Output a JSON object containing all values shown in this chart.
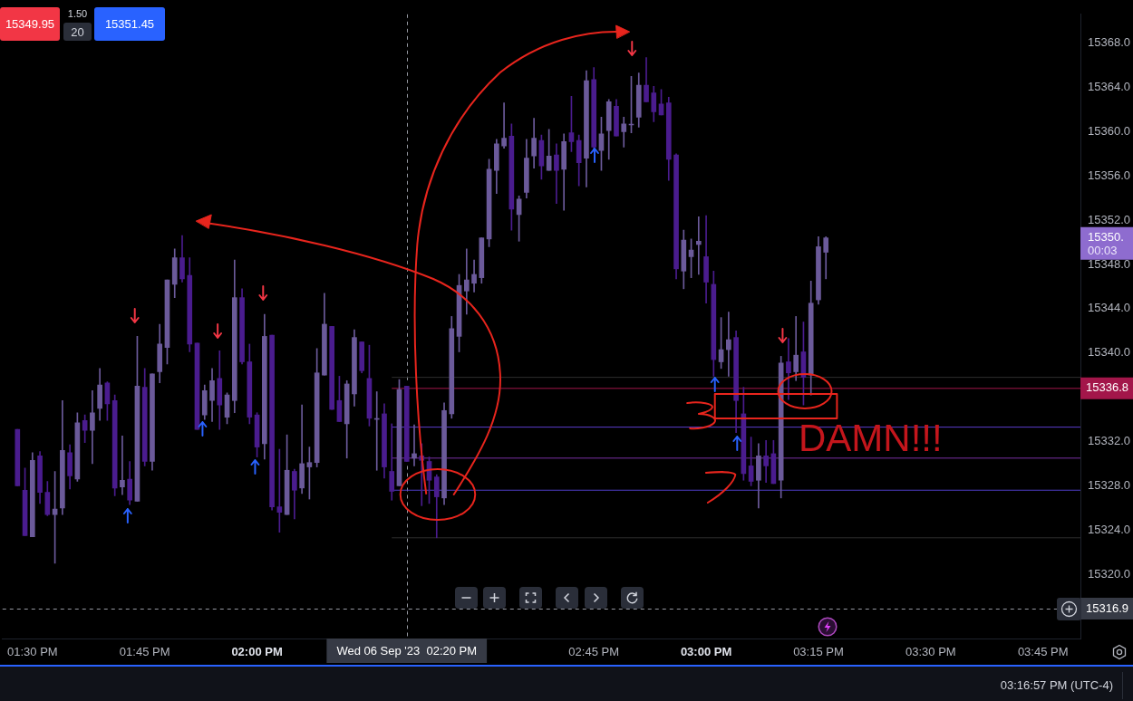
{
  "chart_data": {
    "type": "candlestick",
    "x": [
      "2023-09-06T13:28",
      "2023-09-06T13:29",
      "2023-09-06T13:30",
      "2023-09-06T13:31",
      "2023-09-06T13:32",
      "2023-09-06T13:33",
      "2023-09-06T13:34",
      "2023-09-06T13:35",
      "2023-09-06T13:36",
      "2023-09-06T13:37",
      "2023-09-06T13:38",
      "2023-09-06T13:39",
      "2023-09-06T13:40",
      "2023-09-06T13:41",
      "2023-09-06T13:42",
      "2023-09-06T13:43",
      "2023-09-06T13:44",
      "2023-09-06T13:45",
      "2023-09-06T13:46",
      "2023-09-06T13:47",
      "2023-09-06T13:48",
      "2023-09-06T13:49",
      "2023-09-06T13:50",
      "2023-09-06T13:51",
      "2023-09-06T13:52",
      "2023-09-06T13:53",
      "2023-09-06T13:54",
      "2023-09-06T13:55",
      "2023-09-06T13:56",
      "2023-09-06T13:57",
      "2023-09-06T13:58",
      "2023-09-06T13:59",
      "2023-09-06T14:00",
      "2023-09-06T14:01",
      "2023-09-06T14:02",
      "2023-09-06T14:03",
      "2023-09-06T14:04",
      "2023-09-06T14:05",
      "2023-09-06T14:06",
      "2023-09-06T14:07",
      "2023-09-06T14:08",
      "2023-09-06T14:09",
      "2023-09-06T14:10",
      "2023-09-06T14:11",
      "2023-09-06T14:12",
      "2023-09-06T14:13",
      "2023-09-06T14:14",
      "2023-09-06T14:15",
      "2023-09-06T14:16",
      "2023-09-06T14:17",
      "2023-09-06T14:18",
      "2023-09-06T14:19",
      "2023-09-06T14:20",
      "2023-09-06T14:21",
      "2023-09-06T14:22",
      "2023-09-06T14:23",
      "2023-09-06T14:24",
      "2023-09-06T14:25",
      "2023-09-06T14:26",
      "2023-09-06T14:27",
      "2023-09-06T14:28",
      "2023-09-06T14:29",
      "2023-09-06T14:30",
      "2023-09-06T14:31",
      "2023-09-06T14:32",
      "2023-09-06T14:33",
      "2023-09-06T14:34",
      "2023-09-06T14:35",
      "2023-09-06T14:36",
      "2023-09-06T14:37",
      "2023-09-06T14:38",
      "2023-09-06T14:39",
      "2023-09-06T14:40",
      "2023-09-06T14:41",
      "2023-09-06T14:42",
      "2023-09-06T14:43",
      "2023-09-06T14:44",
      "2023-09-06T14:45",
      "2023-09-06T14:46",
      "2023-09-06T14:47",
      "2023-09-06T14:48",
      "2023-09-06T14:49",
      "2023-09-06T14:50",
      "2023-09-06T14:51",
      "2023-09-06T14:52",
      "2023-09-06T14:53",
      "2023-09-06T14:54",
      "2023-09-06T14:55",
      "2023-09-06T14:56",
      "2023-09-06T14:57",
      "2023-09-06T14:58",
      "2023-09-06T14:59",
      "2023-09-06T15:00",
      "2023-09-06T15:01",
      "2023-09-06T15:02",
      "2023-09-06T15:03",
      "2023-09-06T15:04",
      "2023-09-06T15:05",
      "2023-09-06T15:06",
      "2023-09-06T15:07",
      "2023-09-06T15:08",
      "2023-09-06T15:09",
      "2023-09-06T15:10",
      "2023-09-06T15:11",
      "2023-09-06T15:12",
      "2023-09-06T15:13",
      "2023-09-06T15:14",
      "2023-09-06T15:15",
      "2023-09-06T15:16"
    ],
    "ohlc": [
      [
        15333.1,
        15333.1,
        15328.0,
        15328.0
      ],
      [
        15327.6,
        15329.6,
        15323.5,
        15323.5
      ],
      [
        15323.4,
        15331.0,
        15323.4,
        15330.3
      ],
      [
        15330.7,
        15331.1,
        15326.4,
        15327.4
      ],
      [
        15327.4,
        15328.4,
        15325.3,
        15325.4
      ],
      [
        15325.4,
        15329.3,
        15321.0,
        15325.9
      ],
      [
        15326.0,
        15335.7,
        15325.4,
        15331.2
      ],
      [
        15331.0,
        15331.7,
        15327.7,
        15328.9
      ],
      [
        15328.6,
        15334.6,
        15328.4,
        15333.7
      ],
      [
        15333.9,
        15334.4,
        15331.9,
        15333.0
      ],
      [
        15333.0,
        15336.6,
        15330.0,
        15334.6
      ],
      [
        15335.0,
        15338.6,
        15333.9,
        15337.1
      ],
      [
        15337.3,
        15337.4,
        15333.9,
        15335.4
      ],
      [
        15335.7,
        15336.2,
        15327.1,
        15327.8
      ],
      [
        15327.9,
        15332.5,
        15327.2,
        15328.5
      ],
      [
        15328.6,
        15330.2,
        15326.3,
        15326.7
      ],
      [
        15326.6,
        15341.5,
        15326.6,
        15337.0
      ],
      [
        15336.9,
        15338.6,
        15329.8,
        15330.2
      ],
      [
        15330.2,
        15338.1,
        15329.4,
        15338.1
      ],
      [
        15338.3,
        15342.6,
        15337.3,
        15340.8
      ],
      [
        15340.5,
        15346.6,
        15339.0,
        15346.6
      ],
      [
        15346.2,
        15349.4,
        15345.0,
        15348.6
      ],
      [
        15348.6,
        15350.6,
        15346.4,
        15346.7
      ],
      [
        15347.0,
        15348.6,
        15340.1,
        15340.8
      ],
      [
        15340.9,
        15340.9,
        15333.1,
        15333.1
      ],
      [
        15334.4,
        15337.1,
        15334.0,
        15336.6
      ],
      [
        15335.7,
        15338.6,
        15333.8,
        15337.5
      ],
      [
        15337.7,
        15340.2,
        15333.1,
        15335.3
      ],
      [
        15334.2,
        15336.4,
        15333.6,
        15336.2
      ],
      [
        15335.7,
        15348.4,
        15334.6,
        15345.0
      ],
      [
        15345.0,
        15345.8,
        15339.0,
        15339.2
      ],
      [
        15339.2,
        15340.8,
        15333.6,
        15334.2
      ],
      [
        15334.4,
        15334.6,
        15330.6,
        15331.5
      ],
      [
        15331.8,
        15343.5,
        15330.4,
        15341.5
      ],
      [
        15341.6,
        15341.6,
        15325.8,
        15326.1
      ],
      [
        15326.1,
        15331.3,
        15323.8,
        15325.6
      ],
      [
        15325.4,
        15332.6,
        15325.4,
        15329.4
      ],
      [
        15329.3,
        15329.5,
        15325.0,
        15327.6
      ],
      [
        15327.8,
        15335.3,
        15327.3,
        15330.0
      ],
      [
        15329.7,
        15331.5,
        15326.8,
        15330.1
      ],
      [
        15330.1,
        15340.4,
        15329.7,
        15338.2
      ],
      [
        15338.0,
        15345.4,
        15338.0,
        15342.6
      ],
      [
        15342.4,
        15342.4,
        15334.9,
        15334.9
      ],
      [
        15335.7,
        15337.9,
        15333.8,
        15333.8
      ],
      [
        15333.6,
        15337.5,
        15330.5,
        15337.2
      ],
      [
        15336.3,
        15342.1,
        15335.2,
        15341.4
      ],
      [
        15341.0,
        15341.0,
        15338.2,
        15338.4
      ],
      [
        15337.7,
        15340.7,
        15333.4,
        15334.1
      ],
      [
        15334.0,
        15336.5,
        15329.4,
        15334.0
      ],
      [
        15334.5,
        15335.4,
        15328.7,
        15329.7
      ],
      [
        15329.3,
        15333.6,
        15326.7,
        15327.5
      ],
      [
        15328.0,
        15337.6,
        15328.0,
        15336.7
      ],
      [
        15337.0,
        15337.0,
        15330.2,
        15330.2
      ],
      [
        15330.5,
        15333.5,
        15329.8,
        15330.9
      ],
      [
        15330.7,
        15331.8,
        15326.2,
        15330.3
      ],
      [
        15330.2,
        15330.6,
        15326.4,
        15328.5
      ],
      [
        15328.8,
        15329.0,
        15323.3,
        15327.0
      ],
      [
        15326.9,
        15335.5,
        15326.3,
        15334.8
      ],
      [
        15334.5,
        15343.3,
        15334.1,
        15342.2
      ],
      [
        15341.5,
        15347.1,
        15340.1,
        15346.1
      ],
      [
        15345.6,
        15349.4,
        15343.5,
        15346.6
      ],
      [
        15346.3,
        15348.4,
        15345.5,
        15347.1
      ],
      [
        15346.8,
        15350.4,
        15346.3,
        15350.4
      ],
      [
        15350.3,
        15357.5,
        15349.6,
        15356.6
      ],
      [
        15356.5,
        15359.3,
        15354.4,
        15358.9
      ],
      [
        15358.7,
        15362.6,
        15358.5,
        15359.4
      ],
      [
        15359.6,
        15360.7,
        15351.1,
        15353.0
      ],
      [
        15352.5,
        15354.2,
        15350.1,
        15353.9
      ],
      [
        15354.5,
        15359.3,
        15354.0,
        15357.6
      ],
      [
        15357.8,
        15361.2,
        15356.7,
        15359.4
      ],
      [
        15359.2,
        15359.7,
        15355.7,
        15356.9
      ],
      [
        15356.5,
        15360.2,
        15356.5,
        15357.8
      ],
      [
        15357.9,
        15358.9,
        15353.5,
        15356.5
      ],
      [
        15356.6,
        15359.8,
        15352.9,
        15359.1
      ],
      [
        15359.9,
        15363.2,
        15358.2,
        15359.1
      ],
      [
        15359.2,
        15359.7,
        15355.1,
        15357.2
      ],
      [
        15357.6,
        15365.5,
        15355.0,
        15364.6
      ],
      [
        15364.7,
        15365.8,
        15358.2,
        15358.6
      ],
      [
        15358.3,
        15361.3,
        15356.5,
        15359.8
      ],
      [
        15360.1,
        15362.9,
        15357.5,
        15362.7
      ],
      [
        15362.3,
        15362.9,
        15359.6,
        15359.6
      ],
      [
        15360.0,
        15361.3,
        15358.6,
        15360.7
      ],
      [
        15360.6,
        15365.0,
        15359.9,
        15360.6
      ],
      [
        15361.3,
        15365.3,
        15360.4,
        15364.2
      ],
      [
        15364.2,
        15366.7,
        15362.7,
        15362.7
      ],
      [
        15363.5,
        15364.1,
        15360.9,
        15361.8
      ],
      [
        15362.5,
        15363.8,
        15361.5,
        15361.5
      ],
      [
        15362.6,
        15363.1,
        15355.6,
        15357.5
      ],
      [
        15357.9,
        15358.0,
        15346.7,
        15347.6
      ],
      [
        15347.4,
        15351.1,
        15345.8,
        15350.2
      ],
      [
        15348.7,
        15350.3,
        15346.8,
        15349.3
      ],
      [
        15349.8,
        15352.3,
        15347.1,
        15350.1
      ],
      [
        15348.7,
        15352.4,
        15344.5,
        15346.4
      ],
      [
        15346.2,
        15347.4,
        15337.9,
        15339.4
      ],
      [
        15339.2,
        15343.2,
        15338.6,
        15340.3
      ],
      [
        15340.3,
        15343.7,
        15337.9,
        15341.2
      ],
      [
        15341.4,
        15342.0,
        15332.8,
        15335.7
      ],
      [
        15334.5,
        15336.9,
        15328.5,
        15329.1
      ],
      [
        15329.8,
        15332.4,
        15328.0,
        15328.4
      ],
      [
        15328.5,
        15331.8,
        15326.0,
        15330.7
      ],
      [
        15330.7,
        15332.1,
        15328.3,
        15329.8
      ],
      [
        15330.9,
        15332.1,
        15328.2,
        15328.2
      ],
      [
        15328.5,
        15339.7,
        15326.9,
        15339.1
      ],
      [
        15339.2,
        15341.3,
        15335.8,
        15338.2
      ],
      [
        15338.3,
        15343.3,
        15337.5,
        15339.8
      ],
      [
        15340.1,
        15342.8,
        15335.3,
        15337.8
      ],
      [
        15338.0,
        15346.5,
        15336.2,
        15344.5
      ],
      [
        15344.8,
        15350.5,
        15344.4,
        15349.6
      ],
      [
        15349.1,
        15350.5,
        15346.7,
        15350.4
      ]
    ],
    "colors": [
      "#4a1c8e",
      "#4a1c8e",
      "#6b5a9a",
      "#4a1c8e",
      "#4a1c8e",
      "#6b5a9a",
      "#6b5a9a",
      "#4a1c8e",
      "#6b5a9a",
      "#4a1c8e",
      "#6b5a9a",
      "#6b5a9a",
      "#4a1c8e",
      "#4a1c8e",
      "#6b5a9a",
      "#4a1c8e",
      "#6b5a9a",
      "#4a1c8e",
      "#6b5a9a",
      "#6b5a9a",
      "#6b5a9a",
      "#6b5a9a",
      "#4a1c8e",
      "#4a1c8e",
      "#4a1c8e",
      "#6b5a9a",
      "#6b5a9a",
      "#4a1c8e",
      "#6b5a9a",
      "#6b5a9a",
      "#4a1c8e",
      "#4a1c8e",
      "#4a1c8e",
      "#6b5a9a",
      "#4a1c8e",
      "#4a1c8e",
      "#6b5a9a",
      "#4a1c8e",
      "#6b5a9a",
      "#6b5a9a",
      "#6b5a9a",
      "#6b5a9a",
      "#4a1c8e",
      "#4a1c8e",
      "#6b5a9a",
      "#6b5a9a",
      "#4a1c8e",
      "#4a1c8e",
      "#6b5a9a",
      "#4a1c8e",
      "#4a1c8e",
      "#6b5a9a",
      "#4a1c8e",
      "#6b5a9a",
      "#4a1c8e",
      "#4a1c8e",
      "#4a1c8e",
      "#6b5a9a",
      "#6b5a9a",
      "#6b5a9a",
      "#6b5a9a",
      "#6b5a9a",
      "#6b5a9a",
      "#6b5a9a",
      "#6b5a9a",
      "#6b5a9a",
      "#4a1c8e",
      "#6b5a9a",
      "#6b5a9a",
      "#6b5a9a",
      "#4a1c8e",
      "#6b5a9a",
      "#4a1c8e",
      "#6b5a9a",
      "#4a1c8e",
      "#4a1c8e",
      "#6b5a9a",
      "#4a1c8e",
      "#6b5a9a",
      "#6b5a9a",
      "#4a1c8e",
      "#6b5a9a",
      "#6b5a9a",
      "#6b5a9a",
      "#4a1c8e",
      "#4a1c8e",
      "#4a1c8e",
      "#4a1c8e",
      "#4a1c8e",
      "#6b5a9a",
      "#6b5a9a",
      "#6b5a9a",
      "#4a1c8e",
      "#4a1c8e",
      "#6b5a9a",
      "#6b5a9a",
      "#4a1c8e",
      "#4a1c8e",
      "#4a1c8e",
      "#6b5a9a",
      "#4a1c8e",
      "#4a1c8e",
      "#6b5a9a",
      "#4a1c8e",
      "#6b5a9a",
      "#4a1c8e",
      "#6b5a9a",
      "#6b5a9a",
      "#6b5a9a"
    ],
    "series": [
      {
        "type": "line",
        "x": [
          "2023-09-06T14:18",
          "2023-09-06T15:50"
        ],
        "values": [
          15337.8,
          15337.8
        ],
        "color": "#2e2e2e"
      },
      {
        "type": "line",
        "name": "15336.8",
        "x": [
          "2023-09-06T14:18",
          "2023-09-06T15:50"
        ],
        "values": [
          15336.8,
          15336.8
        ],
        "color": "#a3164a"
      },
      {
        "type": "line",
        "x": [
          "2023-09-06T14:18",
          "2023-09-06T15:50"
        ],
        "values": [
          15333.3,
          15333.3
        ],
        "color": "#5a3ccc"
      },
      {
        "type": "line",
        "x": [
          "2023-09-06T14:18",
          "2023-09-06T15:50"
        ],
        "values": [
          15330.5,
          15330.5
        ],
        "color": "#7a2fa4"
      },
      {
        "type": "line",
        "x": [
          "2023-09-06T14:18",
          "2023-09-06T15:50"
        ],
        "values": [
          15327.6,
          15327.6
        ],
        "color": "#4f3ec8"
      },
      {
        "type": "line",
        "x": [
          "2023-09-06T14:18",
          "2023-09-06T15:50"
        ],
        "values": [
          15323.3,
          15323.3
        ],
        "color": "#2e2e2e"
      }
    ],
    "xlim": [
      "2023-09-06T13:26",
      "2023-09-06T15:50"
    ],
    "xticks": [
      {
        "value": "2023-09-06T13:30",
        "label": "01:30 PM"
      },
      {
        "value": "2023-09-06T13:45",
        "label": "01:45 PM"
      },
      {
        "value": "2023-09-06T14:00",
        "label": "02:00 PM"
      },
      {
        "value": "2023-09-06T14:45",
        "label": "02:45 PM"
      },
      {
        "value": "2023-09-06T15:00",
        "label": "03:00 PM"
      },
      {
        "value": "2023-09-06T15:15",
        "label": "03:15 PM"
      },
      {
        "value": "2023-09-06T15:30",
        "label": "03:30 PM"
      },
      {
        "value": "2023-09-06T15:45",
        "label": "03:45 PM"
      }
    ],
    "ylim": [
      15314.2,
      15370.6
    ],
    "yticks": [
      {
        "value": 15320,
        "label": "15320.0"
      },
      {
        "value": 15324,
        "label": "15324.0"
      },
      {
        "value": 15328,
        "label": "15328.0"
      },
      {
        "value": 15332,
        "label": "15332.0"
      },
      {
        "value": 15340,
        "label": "15340.0"
      },
      {
        "value": 15344,
        "label": "15344.0"
      },
      {
        "value": 15348,
        "label": "15348.0"
      },
      {
        "value": 15352,
        "label": "15352.0"
      },
      {
        "value": 15356,
        "label": "15356.0"
      },
      {
        "value": 15360,
        "label": "15360.0"
      },
      {
        "value": 15364,
        "label": "15364.0"
      },
      {
        "value": 15368,
        "label": "15368.0"
      }
    ],
    "ref_lines": [
      {
        "axis": "y",
        "value": 15316.9,
        "label": "15316.9",
        "color": "#9598a1",
        "line_style": "dashed"
      },
      {
        "axis": "x",
        "value": "2023-09-06T14:20",
        "label": "Wed 06 Sep '23  02:20 PM",
        "color": "#9598a1",
        "line_style": "dashed"
      }
    ],
    "annotations": [
      "15349.95",
      "1.50",
      "20",
      "15351.45",
      "15350.",
      "00:03",
      "DAMN!!!",
      "03:16:57 PM (UTC-4)"
    ]
  }
}
